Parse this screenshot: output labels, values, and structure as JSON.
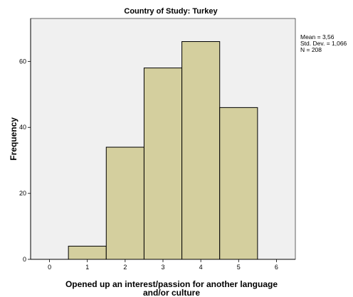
{
  "chart_data": {
    "type": "bar",
    "title": "Country of Study: Turkey",
    "xlabel_lines": [
      "Opened up an interest/passion for another language",
      "and/or culture"
    ],
    "ylabel": "Frequency",
    "x_ticks": [
      "0",
      "1",
      "2",
      "3",
      "4",
      "5",
      "6"
    ],
    "y_ticks": [
      "0",
      "20",
      "40",
      "60"
    ],
    "xlim": [
      -0.5,
      6.5
    ],
    "ylim": [
      0,
      73
    ],
    "categories": [
      "1",
      "2",
      "3",
      "4",
      "5"
    ],
    "values": [
      4,
      34,
      58,
      66,
      46
    ],
    "bar_color": "#d4cf9e",
    "plot_background": "#f0f0f0",
    "stats": {
      "mean": "Mean = 3,56",
      "std": "Std. Dev. = 1,066",
      "n": "N = 208"
    }
  }
}
